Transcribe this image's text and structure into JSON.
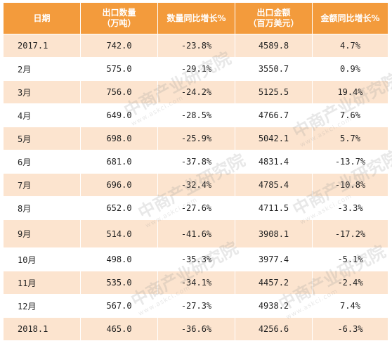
{
  "headers": [
    "日期",
    "出口数量\n（万吨）",
    "数量同比增长%",
    "出口金额\n（百万美元）",
    "金额同比增长%"
  ],
  "rows": [
    [
      "2017.1",
      "742.0",
      "-23.8%",
      "4589.8",
      "4.7%"
    ],
    [
      "2月",
      "575.0",
      "-29.1%",
      "3550.7",
      "0.9%"
    ],
    [
      "3月",
      "756.0",
      "-24.2%",
      "5125.5",
      "19.4%"
    ],
    [
      "4月",
      "649.0",
      "-28.5%",
      "4766.7",
      "7.6%"
    ],
    [
      "5月",
      "698.0",
      "-25.9%",
      "5042.1",
      "5.7%"
    ],
    [
      "6月",
      "681.0",
      "-37.8%",
      "4831.4",
      "-13.7%"
    ],
    [
      "7月",
      "696.0",
      "-32.4%",
      "4785.4",
      "-10.8%"
    ],
    [
      "8月",
      "652.0",
      "-27.6%",
      "4711.5",
      "-3.3%"
    ],
    [
      "9月",
      "514.0",
      "-41.6%",
      "3908.1",
      "-17.2%"
    ],
    [
      "10月",
      "498.0",
      "-35.3%",
      "3977.4",
      "-5.1%"
    ],
    [
      "11月",
      "535.0",
      "-34.1%",
      "4457.2",
      "-2.4%"
    ],
    [
      "12月",
      "567.0",
      "-27.3%",
      "4938.2",
      "7.4%"
    ],
    [
      "2018.1",
      "465.0",
      "-36.6%",
      "4256.6",
      "-6.3%"
    ]
  ],
  "watermark": {
    "cn": "中商产业研究院",
    "en": "www.askci.com"
  },
  "colors": {
    "header_bg": "#f39b3c",
    "stripe_bg": "#fce4cf",
    "header_text": "#ffffff"
  }
}
